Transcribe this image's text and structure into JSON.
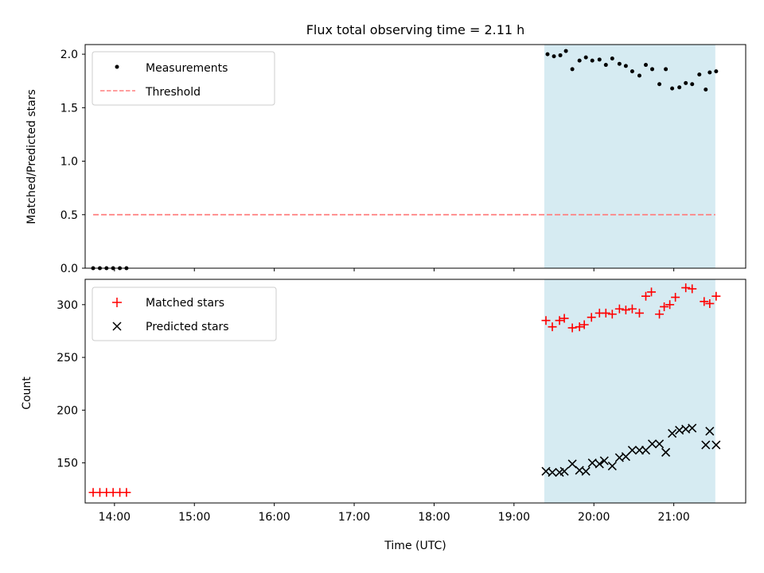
{
  "title": "Flux total observing time = 2.11 h",
  "colors": {
    "measurement": "#000000",
    "threshold": "#ff7f7f",
    "matched": "#ff0000",
    "predicted": "#000000",
    "highlight": "#add8e6"
  },
  "chart_data": [
    {
      "type": "scatter",
      "ylabel": "Matched/Predicted stars",
      "ylim": [
        0,
        2.09
      ],
      "yticks": [
        0.0,
        0.5,
        1.0,
        1.5,
        2.0
      ],
      "ytick_labels": [
        "0.0",
        "0.5",
        "1.0",
        "1.5",
        "2.0"
      ],
      "xlim": [
        13.633,
        21.9
      ],
      "legend": {
        "position": "upper-left",
        "entries": [
          "Measurements",
          "Threshold"
        ]
      },
      "highlight_span": [
        19.38,
        21.52
      ],
      "threshold": {
        "y": 0.5,
        "x": [
          13.733,
          21.52
        ]
      },
      "series": [
        {
          "name": "Measurements",
          "marker": "dot",
          "x": [
            13.733,
            13.817,
            13.9,
            13.983,
            14.067,
            14.15,
            19.42,
            19.5,
            19.58,
            19.65,
            19.73,
            19.82,
            19.9,
            19.98,
            20.07,
            20.15,
            20.23,
            20.32,
            20.4,
            20.48,
            20.57,
            20.65,
            20.73,
            20.82,
            20.9,
            20.98,
            21.07,
            21.15,
            21.23,
            21.32,
            21.4,
            21.45,
            21.53
          ],
          "y": [
            0,
            0,
            0,
            0,
            0,
            0,
            2.0,
            1.98,
            1.99,
            2.03,
            1.86,
            1.94,
            1.97,
            1.94,
            1.95,
            1.9,
            1.96,
            1.91,
            1.89,
            1.84,
            1.8,
            1.9,
            1.86,
            1.72,
            1.86,
            1.68,
            1.69,
            1.73,
            1.72,
            1.81,
            1.67,
            1.83,
            1.84
          ]
        }
      ]
    },
    {
      "type": "scatter",
      "ylabel": "Count",
      "xlabel": "Time (UTC)",
      "ylim": [
        112,
        324
      ],
      "yticks": [
        150,
        200,
        250,
        300
      ],
      "ytick_labels": [
        "150",
        "200",
        "250",
        "300"
      ],
      "xlim": [
        13.633,
        21.9
      ],
      "xticks": [
        14,
        15,
        16,
        17,
        18,
        19,
        20,
        21
      ],
      "xtick_labels": [
        "14:00",
        "15:00",
        "16:00",
        "17:00",
        "18:00",
        "19:00",
        "20:00",
        "21:00"
      ],
      "legend": {
        "position": "upper-left",
        "entries": [
          "Matched stars",
          "Predicted stars"
        ]
      },
      "highlight_span": [
        19.38,
        21.52
      ],
      "series": [
        {
          "name": "Matched stars",
          "marker": "plus",
          "x": [
            13.733,
            13.817,
            13.9,
            13.983,
            14.067,
            14.15,
            19.4,
            19.48,
            19.57,
            19.63,
            19.73,
            19.82,
            19.88,
            19.97,
            20.07,
            20.15,
            20.23,
            20.32,
            20.4,
            20.48,
            20.57,
            20.65,
            20.72,
            20.82,
            20.88,
            20.95,
            21.02,
            21.15,
            21.23,
            21.38,
            21.45,
            21.53
          ],
          "y": [
            122,
            122,
            122,
            122,
            122,
            122,
            285,
            279,
            285,
            287,
            278,
            279,
            281,
            288,
            292,
            292,
            291,
            296,
            295,
            296,
            292,
            308,
            312,
            291,
            298,
            300,
            307,
            316,
            315,
            303,
            301,
            308
          ]
        },
        {
          "name": "Predicted stars",
          "marker": "x",
          "x": [
            19.4,
            19.48,
            19.57,
            19.63,
            19.73,
            19.82,
            19.9,
            19.98,
            20.07,
            20.13,
            20.23,
            20.32,
            20.4,
            20.48,
            20.57,
            20.65,
            20.73,
            20.82,
            20.9,
            20.98,
            21.07,
            21.15,
            21.23,
            21.4,
            21.45,
            21.53
          ],
          "y": [
            142,
            141,
            141,
            142,
            149,
            143,
            142,
            150,
            149,
            152,
            147,
            155,
            156,
            162,
            162,
            162,
            168,
            168,
            160,
            178,
            181,
            182,
            183,
            167,
            180,
            167
          ]
        }
      ]
    }
  ]
}
